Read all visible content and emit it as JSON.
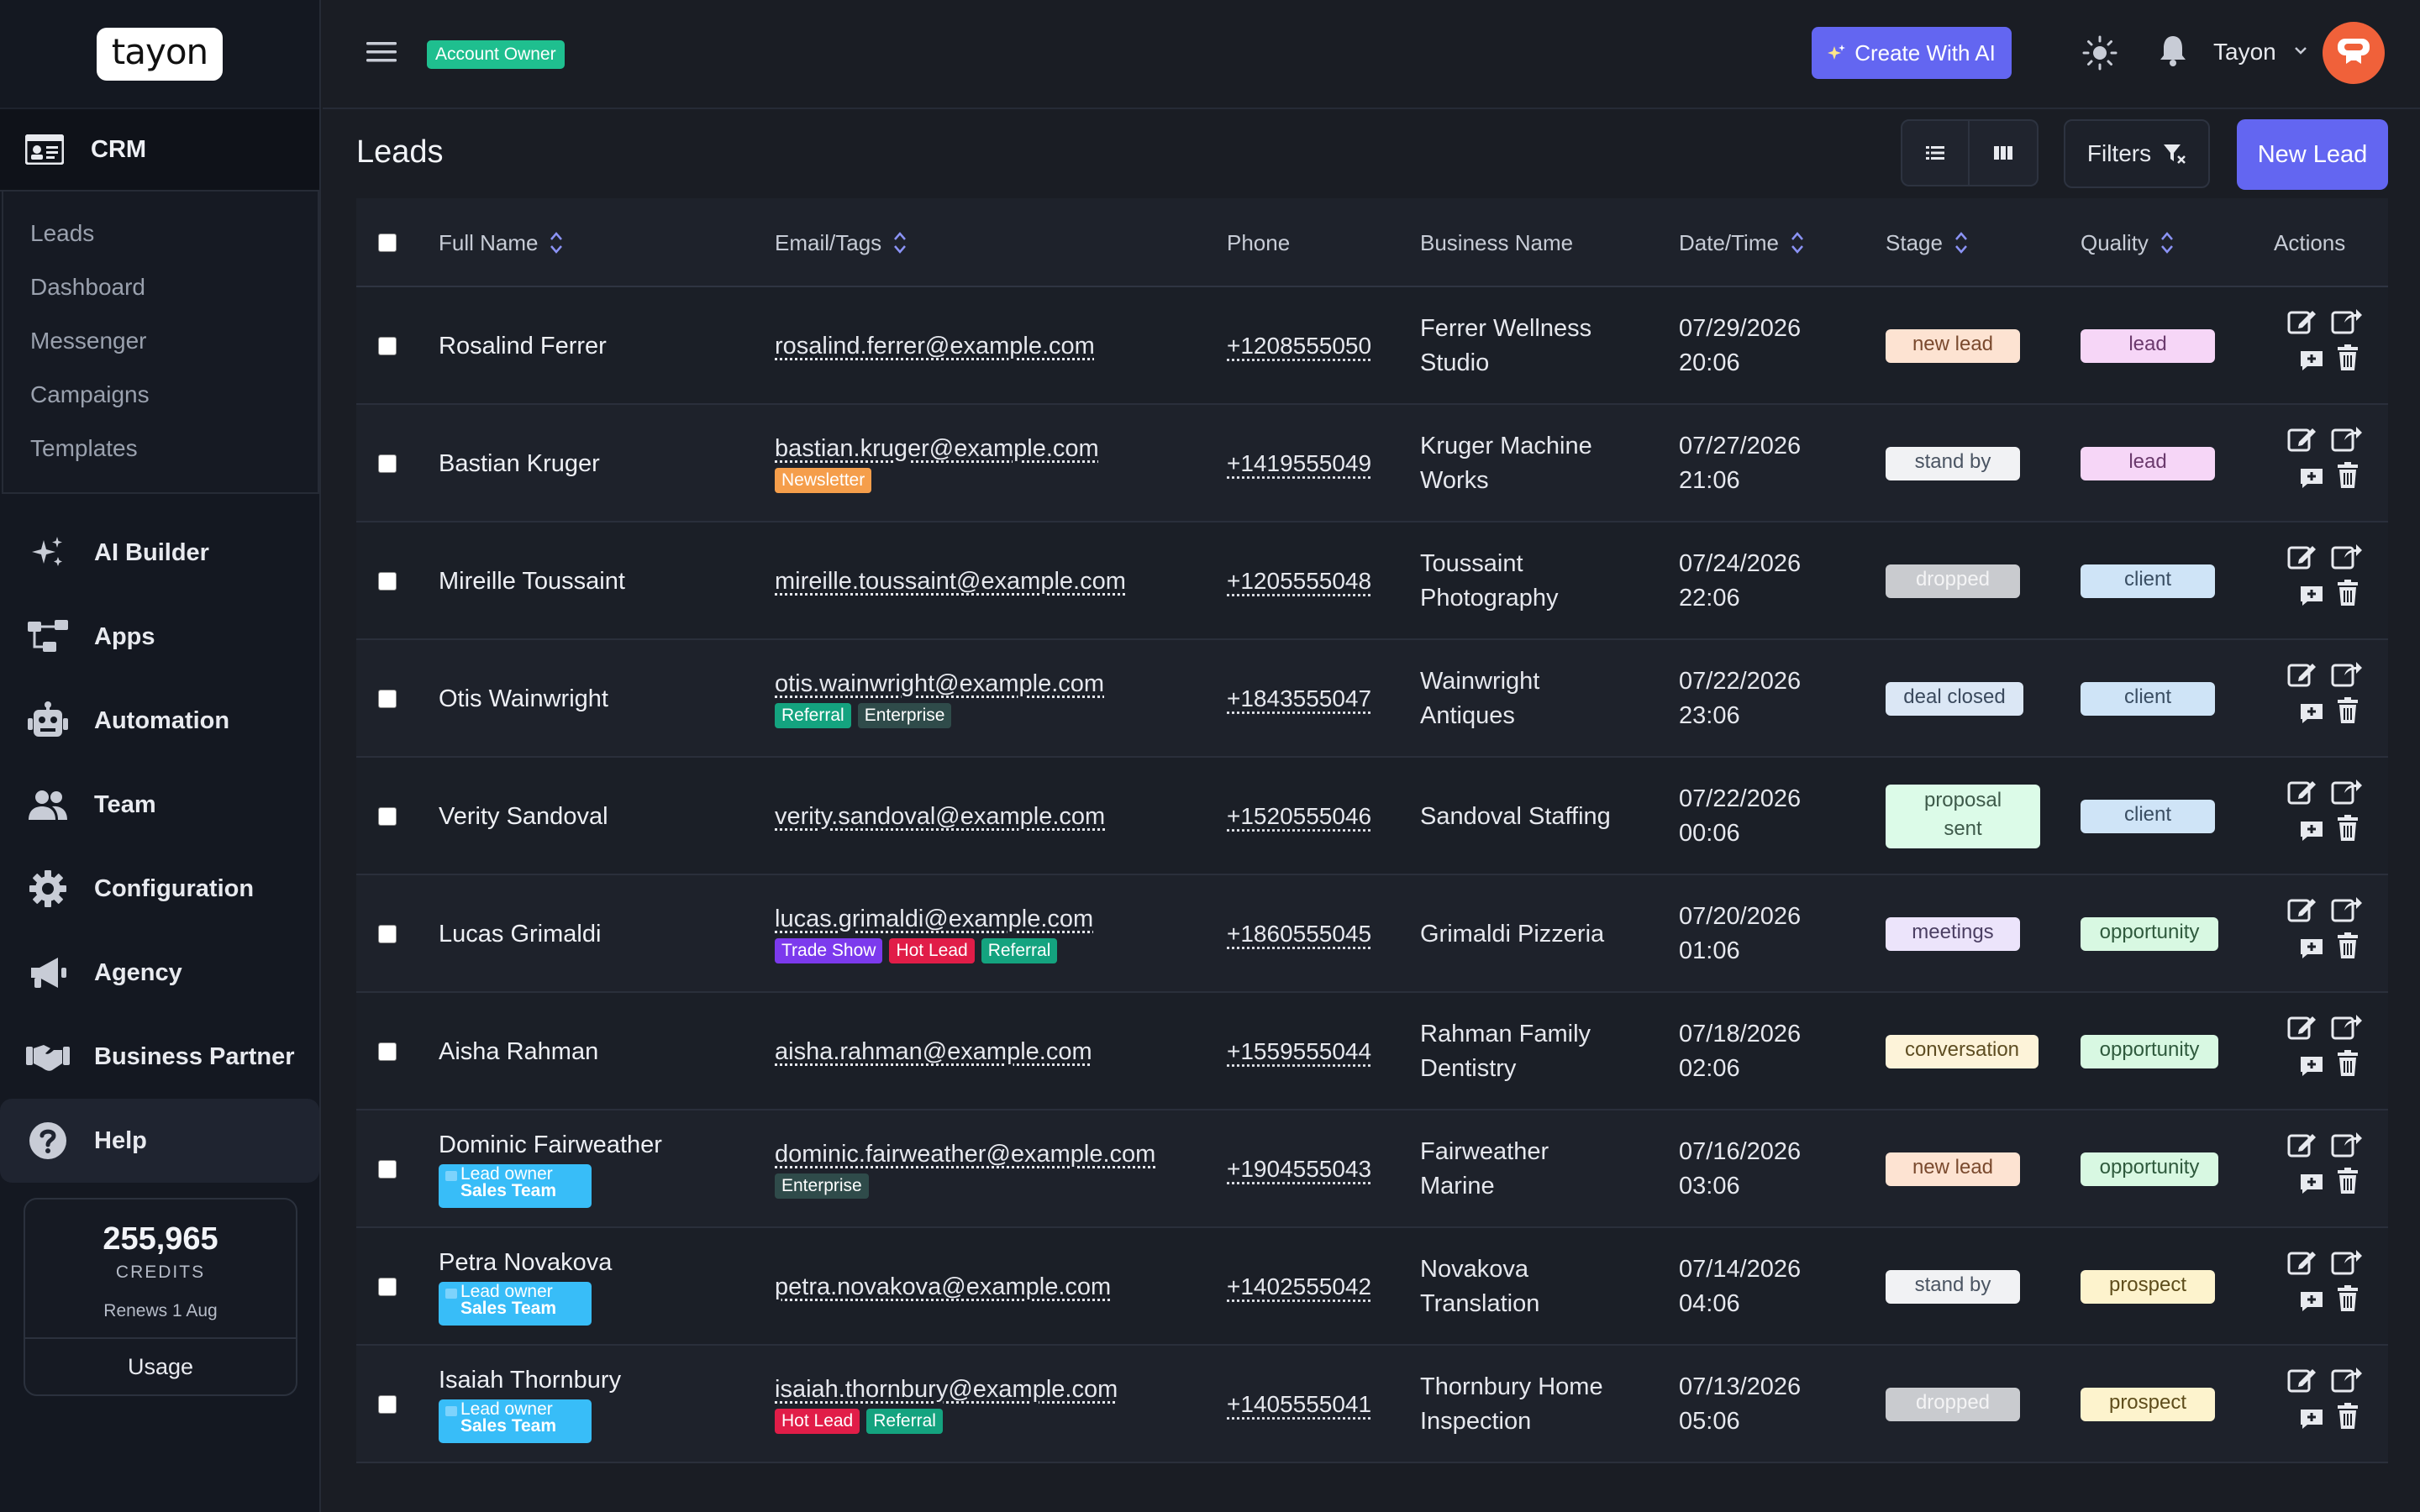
{
  "app": {
    "logo": "tayon",
    "role_badge": "Account Owner"
  },
  "sidebar": {
    "crm_label": "CRM",
    "submenu": [
      "Leads",
      "Dashboard",
      "Messenger",
      "Campaigns",
      "Templates"
    ],
    "nav": [
      {
        "label": "AI Builder",
        "icon": "sparkles-icon"
      },
      {
        "label": "Apps",
        "icon": "apps-tree-icon"
      },
      {
        "label": "Automation",
        "icon": "robot-icon"
      },
      {
        "label": "Team",
        "icon": "team-icon"
      },
      {
        "label": "Configuration",
        "icon": "gear-icon"
      },
      {
        "label": "Agency",
        "icon": "megaphone-icon"
      },
      {
        "label": "Business Partner",
        "icon": "handshake-icon"
      },
      {
        "label": "Help",
        "icon": "question-circle-icon"
      }
    ],
    "credits": {
      "amount": "255,965",
      "caption": "CREDITS",
      "renews": "Renews 1 Aug",
      "usage": "Usage"
    }
  },
  "topbar": {
    "create_ai": "Create With AI",
    "user_name": "Tayon"
  },
  "page": {
    "title": "Leads",
    "filters": "Filters",
    "new_lead": "New Lead"
  },
  "table": {
    "columns": [
      "Full Name",
      "Email/Tags",
      "Phone",
      "Business Name",
      "Date/Time",
      "Stage",
      "Quality",
      "Actions"
    ],
    "rows": [
      {
        "name": "Rosalind Ferrer",
        "owner": false,
        "email": "rosalind.ferrer@example.com",
        "tags": [],
        "phone": "+1208555050",
        "biz": [
          "Ferrer Wellness",
          "Studio"
        ],
        "date": "07/29/2026",
        "time": "20:06",
        "stage": "new lead",
        "stage_key": "new",
        "quality": "lead"
      },
      {
        "name": "Bastian Kruger",
        "owner": false,
        "email": "bastian.kruger@example.com",
        "tags": [
          "Newsletter"
        ],
        "phone": "+1419555049",
        "biz": [
          "Kruger Machine",
          "Works"
        ],
        "date": "07/27/2026",
        "time": "21:06",
        "stage": "stand by",
        "stage_key": "standby",
        "quality": "lead"
      },
      {
        "name": "Mireille Toussaint",
        "owner": false,
        "email": "mireille.toussaint@example.com",
        "tags": [],
        "phone": "+1205555048",
        "biz": [
          "Toussaint",
          "Photography"
        ],
        "date": "07/24/2026",
        "time": "22:06",
        "stage": "dropped",
        "stage_key": "dropped",
        "quality": "client"
      },
      {
        "name": "Otis Wainwright",
        "owner": false,
        "email": "otis.wainwright@example.com",
        "tags": [
          "Referral",
          "Enterprise"
        ],
        "phone": "+1843555047",
        "biz": [
          "Wainwright",
          "Antiques"
        ],
        "date": "07/22/2026",
        "time": "23:06",
        "stage": "deal closed",
        "stage_key": "closed",
        "quality": "client"
      },
      {
        "name": "Verity Sandoval",
        "owner": false,
        "email": "verity.sandoval@example.com",
        "tags": [],
        "phone": "+1520555046",
        "biz": [
          "Sandoval Staffing"
        ],
        "date": "07/22/2026",
        "time": "00:06",
        "stage": "proposal sent",
        "stage_key": "proposal",
        "quality": "client"
      },
      {
        "name": "Lucas Grimaldi",
        "owner": false,
        "email": "lucas.grimaldi@example.com",
        "tags": [
          "Trade Show",
          "Hot Lead",
          "Referral"
        ],
        "phone": "+1860555045",
        "biz": [
          "Grimaldi Pizzeria"
        ],
        "date": "07/20/2026",
        "time": "01:06",
        "stage": "meetings",
        "stage_key": "meetings",
        "quality": "opportunity"
      },
      {
        "name": "Aisha Rahman",
        "owner": false,
        "email": "aisha.rahman@example.com",
        "tags": [],
        "phone": "+1559555044",
        "biz": [
          "Rahman Family",
          "Dentistry"
        ],
        "date": "07/18/2026",
        "time": "02:06",
        "stage": "conversation",
        "stage_key": "conversation",
        "quality": "opportunity"
      },
      {
        "name": "Dominic Fairweather",
        "owner": true,
        "email": "dominic.fairweather@example.com",
        "tags": [
          "Enterprise"
        ],
        "phone": "+1904555043",
        "biz": [
          "Fairweather",
          "Marine"
        ],
        "date": "07/16/2026",
        "time": "03:06",
        "stage": "new lead",
        "stage_key": "new",
        "quality": "opportunity"
      },
      {
        "name": "Petra Novakova",
        "owner": true,
        "email": "petra.novakova@example.com",
        "tags": [],
        "phone": "+1402555042",
        "biz": [
          "Novakova",
          "Translation"
        ],
        "date": "07/14/2026",
        "time": "04:06",
        "stage": "stand by",
        "stage_key": "standby",
        "quality": "prospect"
      },
      {
        "name": "Isaiah Thornbury",
        "owner": true,
        "email": "isaiah.thornbury@example.com",
        "tags": [
          "Hot Lead",
          "Referral"
        ],
        "phone": "+1405555041",
        "biz": [
          "Thornbury Home",
          "Inspection"
        ],
        "date": "07/13/2026",
        "time": "05:06",
        "stage": "dropped",
        "stage_key": "dropped",
        "quality": "prospect"
      }
    ],
    "owner_tag": {
      "line1": "Lead owner",
      "line2": "Sales Team"
    }
  },
  "colors": {
    "accent": "#6366f1",
    "role_badge": "#1fbf8f",
    "tag_colors": {
      "Newsletter": "#f59e4b",
      "Referral": "#14a37f",
      "Enterprise": "#2f4b4a",
      "Trade Show": "#7c3aed",
      "Hot Lead": "#e11d48"
    },
    "stage": {
      "new": [
        "#fde3d2",
        "#7a4a2e"
      ],
      "standby": [
        "#f1f2f4",
        "#4b5563"
      ],
      "dropped": [
        "#c9cbcf",
        "#f4f4f5"
      ],
      "closed": [
        "#dbe7f5",
        "#3b4a5e"
      ],
      "proposal": [
        "#dcfbe8",
        "#3e5a4a"
      ],
      "meetings": [
        "#ece4fb",
        "#4b3f63"
      ],
      "conversation": [
        "#fdf3d9",
        "#5e4d22"
      ]
    },
    "quality": {
      "lead": [
        "#f6d6f7",
        "#6b3a6d"
      ],
      "client": [
        "#cfe4f7",
        "#3a4e63"
      ],
      "opportunity": [
        "#d8f8e2",
        "#2f5a3d"
      ],
      "prospect": [
        "#fdf3cd",
        "#5e4d1c"
      ]
    }
  }
}
